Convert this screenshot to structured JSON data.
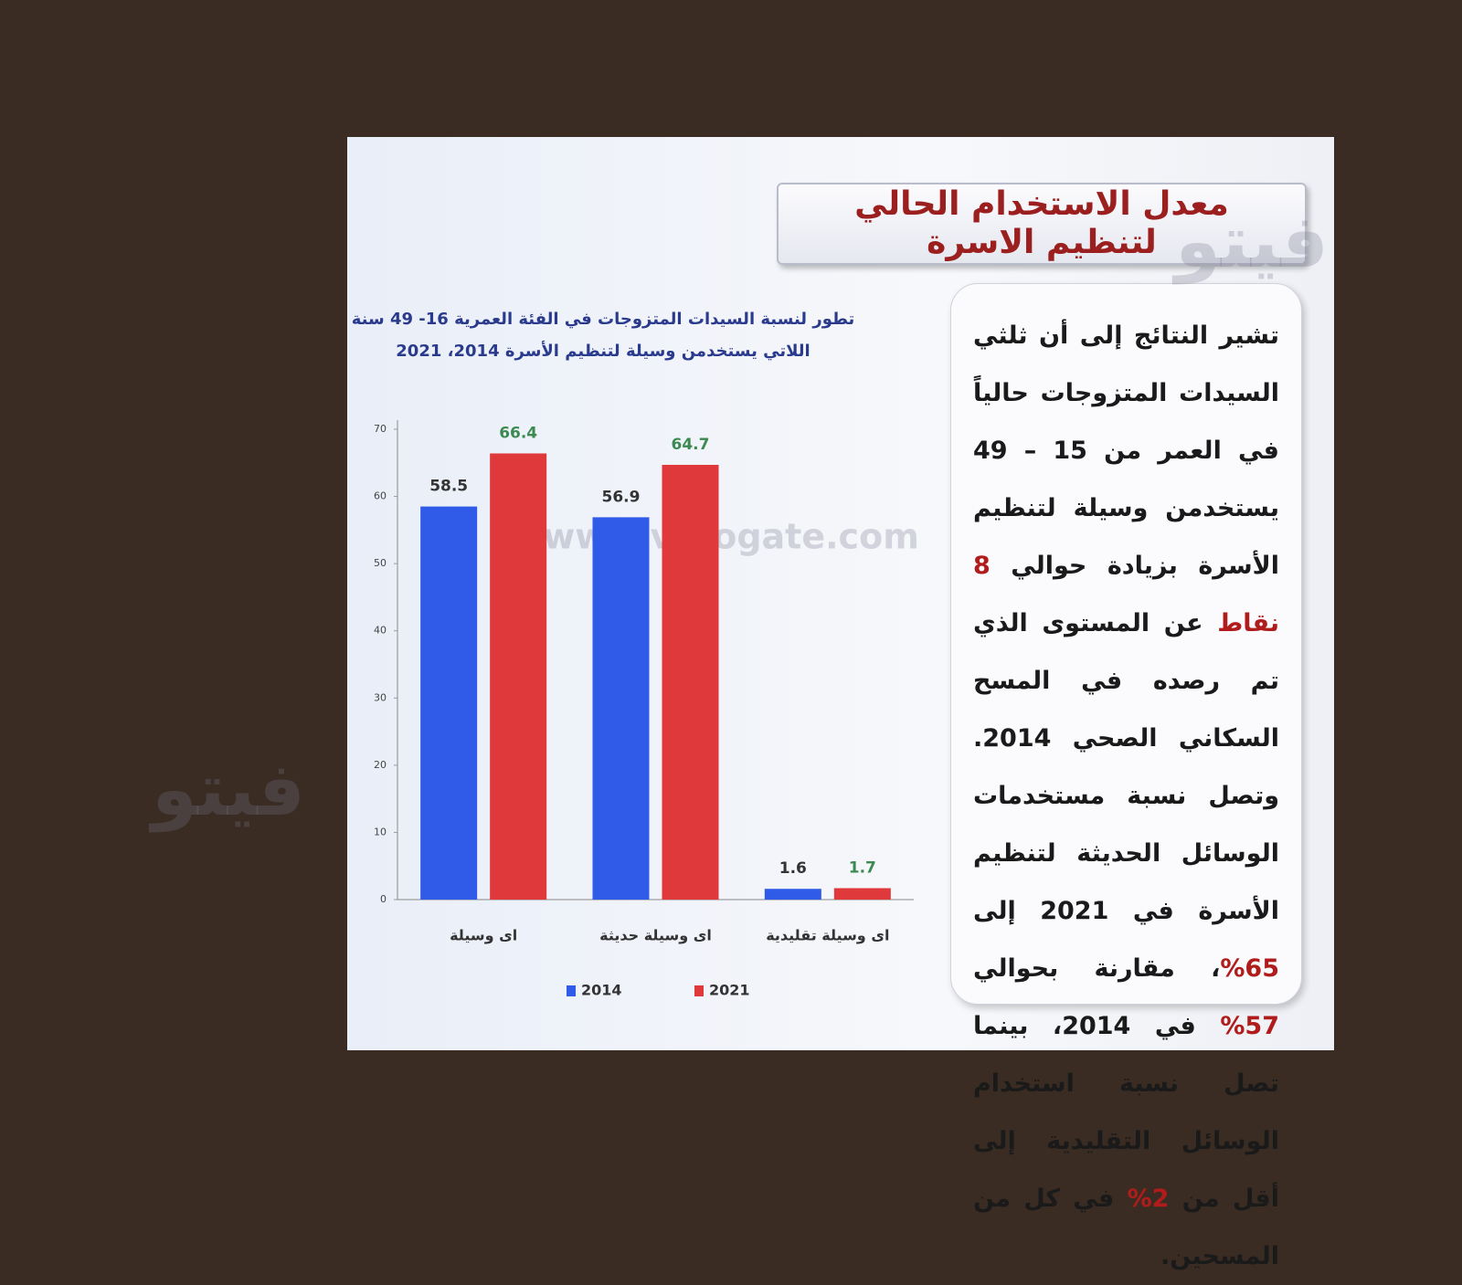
{
  "slide_title": "معدل الاستخدام الحالي لتنظيم الاسرة",
  "paragraph": [
    {
      "text": "تشير النتائج إلى أن ثلثي السيدات المتزوجات حالياً في العمر من 15 – 49 يستخدمن وسيلة لتنظيم الأسرة بزيادة حوالي ",
      "color": "#1a1a1a"
    },
    {
      "text": "8 نقاط",
      "color": "#b01c1c"
    },
    {
      "text": " عن المستوى الذي تم رصده في المسح السكاني الصحي 2014. وتصل نسبة مستخدمات الوسائل الحديثة لتنظيم الأسرة في 2021 إلى ",
      "color": "#1a1a1a"
    },
    {
      "text": "65%",
      "color": "#b01c1c"
    },
    {
      "text": "، مقارنة بحوالي ",
      "color": "#1a1a1a"
    },
    {
      "text": "57%",
      "color": "#b01c1c"
    },
    {
      "text": " في 2014، بينما تصل نسبة استخدام الوسائل التقليدية إلى أقل من ",
      "color": "#1a1a1a"
    },
    {
      "text": "2%",
      "color": "#b01c1c"
    },
    {
      "text": " في كل من المسحين.",
      "color": "#1a1a1a"
    }
  ],
  "watermarks": [
    "www.vetogate.com",
    "فيتو"
  ],
  "chart_data": {
    "type": "bar",
    "title": "تطور لنسبة السيدات المتزوجات في الفئة العمرية 16- 49 سنة",
    "subtitle": "اللاتي يستخدمن وسيلة لتنظيم الأسرة 2014، 2021",
    "categories": [
      "اى وسيلة",
      "اى وسيلة حديثة",
      "اى وسيلة تقليدية"
    ],
    "series": [
      {
        "name": "2014",
        "color": "#2f5be8",
        "values": [
          58.5,
          56.9,
          1.6
        ]
      },
      {
        "name": "2021",
        "color": "#e0393b",
        "values": [
          66.4,
          64.7,
          1.7
        ]
      }
    ],
    "ylim": [
      0,
      70
    ],
    "yticks": [
      0,
      10,
      20,
      30,
      40,
      50,
      60,
      70
    ],
    "grid": false,
    "legend": "bottom"
  }
}
